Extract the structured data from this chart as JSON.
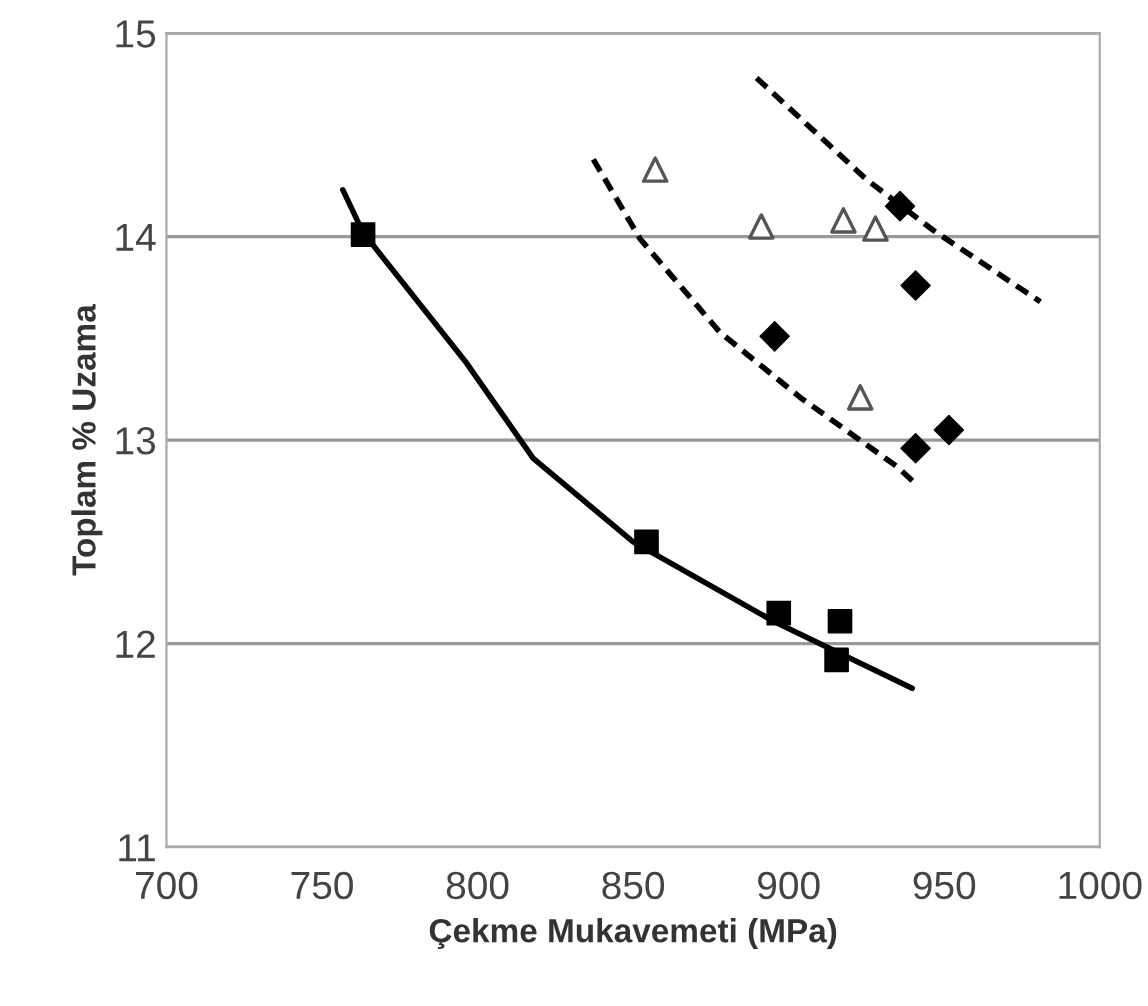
{
  "chart_data": {
    "type": "scatter",
    "xlabel": "Çekme Mukavemeti (MPa)",
    "ylabel": "Toplam % Uzama",
    "xlim": [
      700,
      1000
    ],
    "xticks": [
      700,
      750,
      800,
      850,
      900,
      950,
      1000
    ],
    "ylim": [
      11,
      15
    ],
    "yticks": [
      11,
      12,
      13,
      14,
      15
    ],
    "grid": "y",
    "series": [
      {
        "marker": "square",
        "color": "#000000",
        "x": [
          763.2,
          854.3,
          896.8,
          916.5,
          915.4
        ],
        "values": [
          14.01,
          12.5,
          12.15,
          12.11,
          11.92
        ]
      },
      {
        "type": "line",
        "line_style": "solid",
        "color": "#000000",
        "x": [
          756.7,
          763.2,
          796.4,
          817.9,
          850,
          895.1,
          939.7
        ],
        "values": [
          14.23,
          14.02,
          13.38,
          12.91,
          12.5,
          12.11,
          11.78
        ]
      },
      {
        "marker": "diamond",
        "color": "#000000",
        "x": [
          935.8,
          940.8,
          895.5,
          940.8,
          951.5
        ],
        "values": [
          14.15,
          13.76,
          13.51,
          12.96,
          13.05
        ]
      },
      {
        "marker": "triangle",
        "color": "#555555",
        "x": [
          857.1,
          891.2,
          917.6,
          927.9,
          923.0
        ],
        "values": [
          14.33,
          14.05,
          14.08,
          14.04,
          13.21
        ]
      },
      {
        "type": "line",
        "line_style": "dashed",
        "color": "#000000",
        "x": [
          837.2,
          852.2,
          877.9,
          903.7,
          934.8,
          941.2
        ],
        "values": [
          14.38,
          13.99,
          13.53,
          13.21,
          12.87,
          12.78
        ]
      },
      {
        "type": "line",
        "line_style": "dashed",
        "color": "#000000",
        "x": [
          889.7,
          925.1,
          946.6,
          980.9
        ],
        "values": [
          14.78,
          14.28,
          14.03,
          13.68
        ]
      }
    ]
  }
}
